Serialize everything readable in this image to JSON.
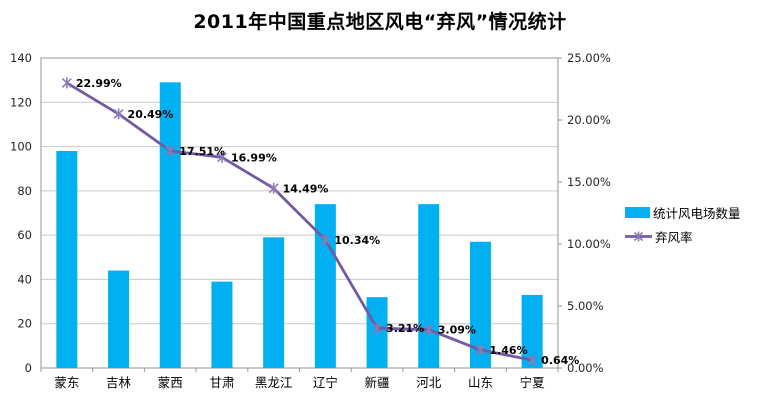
{
  "chart_data": {
    "type": "combo-bar-line",
    "title": "2011年中国重点地区风电“弃风”情况统计",
    "categories": [
      "蒙东",
      "吉林",
      "蒙西",
      "甘肃",
      "黑龙江",
      "辽宁",
      "新疆",
      "河北",
      "山东",
      "宁夏"
    ],
    "series": [
      {
        "name": "统计风电场数量",
        "type": "bar",
        "color": "#00B0F0",
        "axis": "left",
        "values": [
          98,
          44,
          129,
          39,
          59,
          74,
          32,
          74,
          57,
          33
        ]
      },
      {
        "name": "弃风率",
        "type": "line",
        "color": "#7459A3",
        "marker_color": "#8D7BB8",
        "axis": "right",
        "values_percent": [
          22.99,
          20.49,
          17.51,
          16.99,
          14.49,
          10.34,
          3.21,
          3.09,
          1.46,
          0.64
        ],
        "data_labels": [
          "22.99%",
          "20.49%",
          "17.51%",
          "16.99%",
          "14.49%",
          "10.34%",
          "3.21%",
          "3.09%",
          "1.46%",
          "0.64%"
        ]
      }
    ],
    "left_axis": {
      "min": 0,
      "max": 140,
      "step": 20,
      "ticks": [
        "0",
        "20",
        "40",
        "60",
        "80",
        "100",
        "120",
        "140"
      ]
    },
    "right_axis": {
      "min": 0,
      "max": 25,
      "step": 5,
      "ticks": [
        "0.00%",
        "5.00%",
        "10.00%",
        "15.00%",
        "20.00%",
        "25.00%"
      ]
    },
    "grid": true,
    "legend_position": "right"
  },
  "style": {
    "grid_color": "#C9C9C9",
    "border_color": "#969696",
    "axis_text_color": "#262626",
    "category_text_color": "#000000",
    "data_label_color": "#000000",
    "background": "#FFFFFF"
  }
}
